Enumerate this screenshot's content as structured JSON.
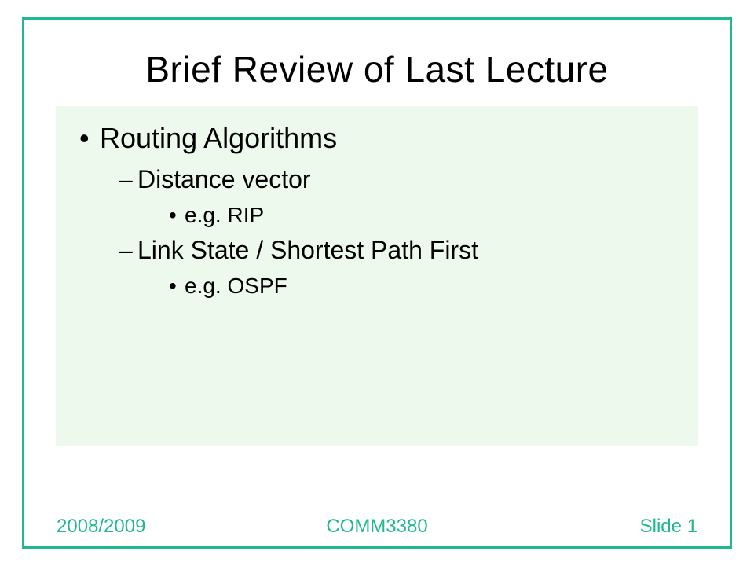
{
  "colors": {
    "border": "#1fb890",
    "content_bg": "#eef9ed",
    "text": "#000000",
    "footer_text": "#1fb890",
    "page_bg": "#ffffff"
  },
  "typography": {
    "title_fontsize": 46,
    "l1_fontsize": 36,
    "l2_fontsize": 32,
    "l3_fontsize": 28,
    "footer_fontsize": 24,
    "font_family": "Arial"
  },
  "title": "Brief Review of Last Lecture",
  "bullets": {
    "l1": {
      "marker": "•",
      "text": "Routing Algorithms"
    },
    "l2a": {
      "marker": "–",
      "text": "Distance vector"
    },
    "l3a": {
      "marker": "•",
      "text": "e.g. RIP"
    },
    "l2b": {
      "marker": "–",
      "text": "Link State / Shortest Path First"
    },
    "l3b": {
      "marker": "•",
      "text": "e.g. OSPF"
    }
  },
  "footer": {
    "year": "2008/2009",
    "course": "COMM3380",
    "slideno": "Slide 1"
  }
}
